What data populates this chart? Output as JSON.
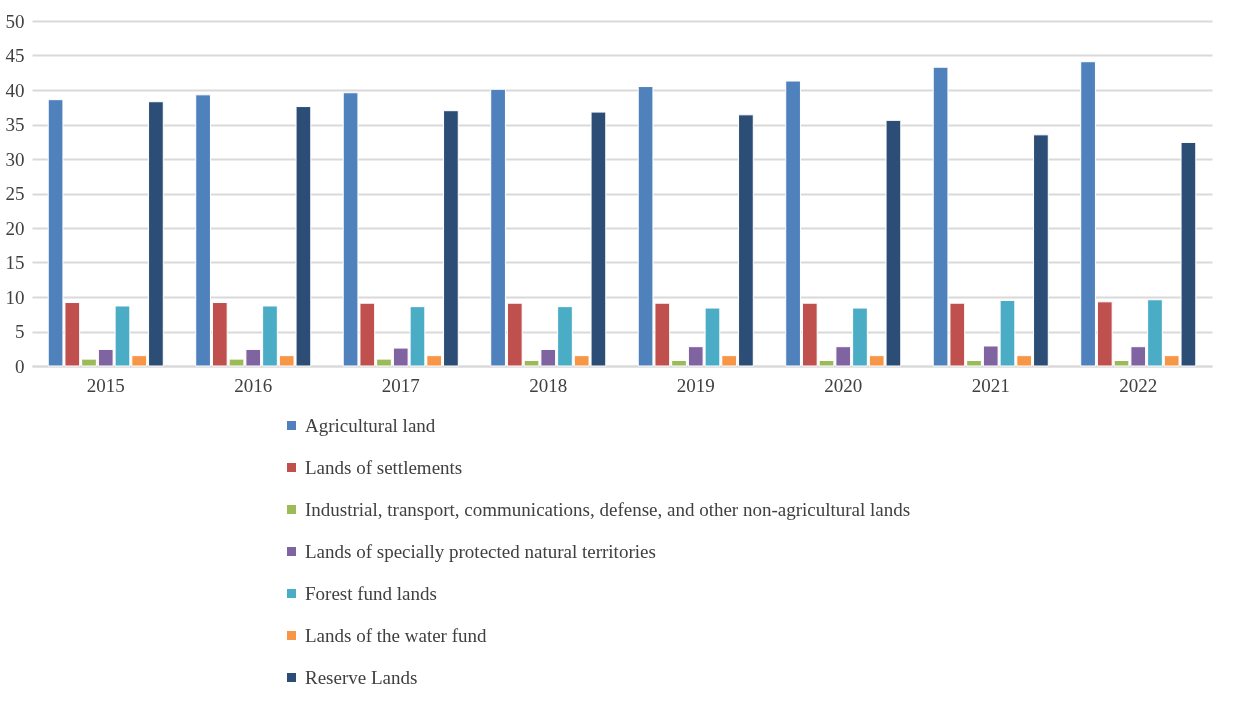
{
  "chart_data": {
    "type": "bar",
    "categories": [
      "2015",
      "2016",
      "2017",
      "2018",
      "2019",
      "2020",
      "2021",
      "2022"
    ],
    "ylim": [
      0,
      50
    ],
    "yticks": [
      0,
      5,
      10,
      15,
      20,
      25,
      30,
      35,
      40,
      45,
      50
    ],
    "grid": "y",
    "legend": "bottom",
    "series": [
      {
        "name": "Agricultural land",
        "color": "#4f81bd",
        "values": [
          38.6,
          39.3,
          39.6,
          40.1,
          40.5,
          41.3,
          43.3,
          44.1
        ]
      },
      {
        "name": "Lands of settlements",
        "color": "#c0504d",
        "values": [
          9.2,
          9.2,
          9.1,
          9.1,
          9.1,
          9.1,
          9.1,
          9.3
        ]
      },
      {
        "name": "Industrial, transport, communications, defense, and other non-agricultural lands",
        "color": "#9bbb59",
        "values": [
          1.0,
          1.0,
          1.0,
          0.8,
          0.8,
          0.8,
          0.8,
          0.8
        ]
      },
      {
        "name": "Lands of specially protected natural territories",
        "color": "#8064a2",
        "values": [
          2.4,
          2.4,
          2.6,
          2.4,
          2.8,
          2.8,
          2.9,
          2.8
        ]
      },
      {
        "name": "Forest fund lands",
        "color": "#4bacc6",
        "values": [
          8.7,
          8.7,
          8.6,
          8.6,
          8.4,
          8.4,
          9.5,
          9.6
        ]
      },
      {
        "name": "Lands of the water fund",
        "color": "#f79646",
        "values": [
          1.5,
          1.5,
          1.5,
          1.5,
          1.5,
          1.5,
          1.5,
          1.5
        ]
      },
      {
        "name": "Reserve Lands",
        "color": "#2c4d75",
        "values": [
          38.3,
          37.6,
          37.0,
          36.8,
          36.4,
          35.6,
          33.5,
          32.4
        ]
      }
    ]
  }
}
